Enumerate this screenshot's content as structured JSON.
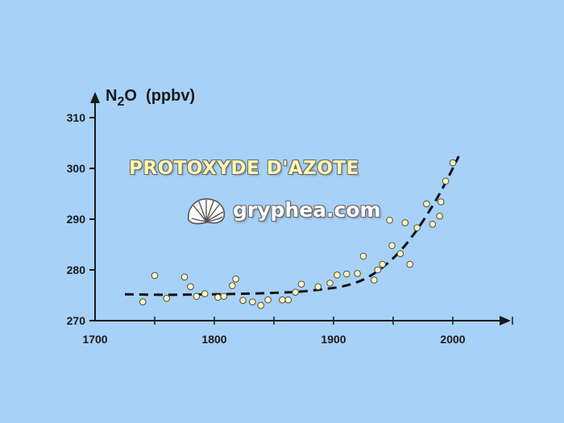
{
  "chart_data": {
    "type": "scatter",
    "ylabel_main": "N",
    "ylabel_sub": "2",
    "ylabel_rest": "O  (ppbv)",
    "annotation": "PROTOXYDE D'AZOTE",
    "watermark": "gryphea.com",
    "xlim": [
      1700,
      2055
    ],
    "ylim": [
      270,
      315
    ],
    "xticks": [
      1700,
      1800,
      1900,
      2000
    ],
    "xtick_labels": [
      "1700",
      "1800",
      "1900",
      "2000"
    ],
    "yticks": [
      270,
      280,
      290,
      300,
      310
    ],
    "ytick_labels": [
      "270",
      "280",
      "290",
      "300",
      "310"
    ],
    "series": [
      {
        "type": "scatter",
        "x": [
          1740,
          1750,
          1760,
          1775,
          1780,
          1785,
          1792,
          1803,
          1808,
          1815,
          1818,
          1824,
          1832,
          1839,
          1845,
          1857,
          1862,
          1868,
          1873,
          1887,
          1897,
          1903,
          1911,
          1920,
          1925,
          1934,
          1937,
          1941,
          1947,
          1949,
          1956,
          1960,
          1964,
          1970,
          1978,
          1983,
          1989,
          1990,
          1994,
          2000
        ],
        "y": [
          273.7,
          278.9,
          274.4,
          278.6,
          276.7,
          274.8,
          275.3,
          274.6,
          274.8,
          276.9,
          278.2,
          274.0,
          273.7,
          273.0,
          274.1,
          274.1,
          274.1,
          275.6,
          277.2,
          276.7,
          277.4,
          279.0,
          279.2,
          279.3,
          282.7,
          278.0,
          280.0,
          281.1,
          289.8,
          284.8,
          283.2,
          289.3,
          281.1,
          288.3,
          293.0,
          289.0,
          290.6,
          293.4,
          297.5,
          301.1
        ]
      },
      {
        "type": "line",
        "style": "dashed",
        "x": [
          1725,
          1760,
          1800,
          1840,
          1870,
          1895,
          1910,
          1925,
          1940,
          1955,
          1970,
          1985,
          1995,
          2005
        ],
        "y": [
          275.2,
          275.1,
          275.2,
          275.4,
          275.7,
          276.3,
          276.9,
          278.1,
          280.3,
          283.5,
          287.9,
          293.4,
          297.7,
          302.4
        ]
      }
    ],
    "colors": {
      "background": "#a8d1f8",
      "marker_fill": "#fffbbf",
      "marker_stroke": "#4a4a4a",
      "trend_line": "#111111",
      "axis": "#1a1a1a",
      "annotation_fill": "#fff8b0"
    },
    "grid": false,
    "legend": "none"
  }
}
